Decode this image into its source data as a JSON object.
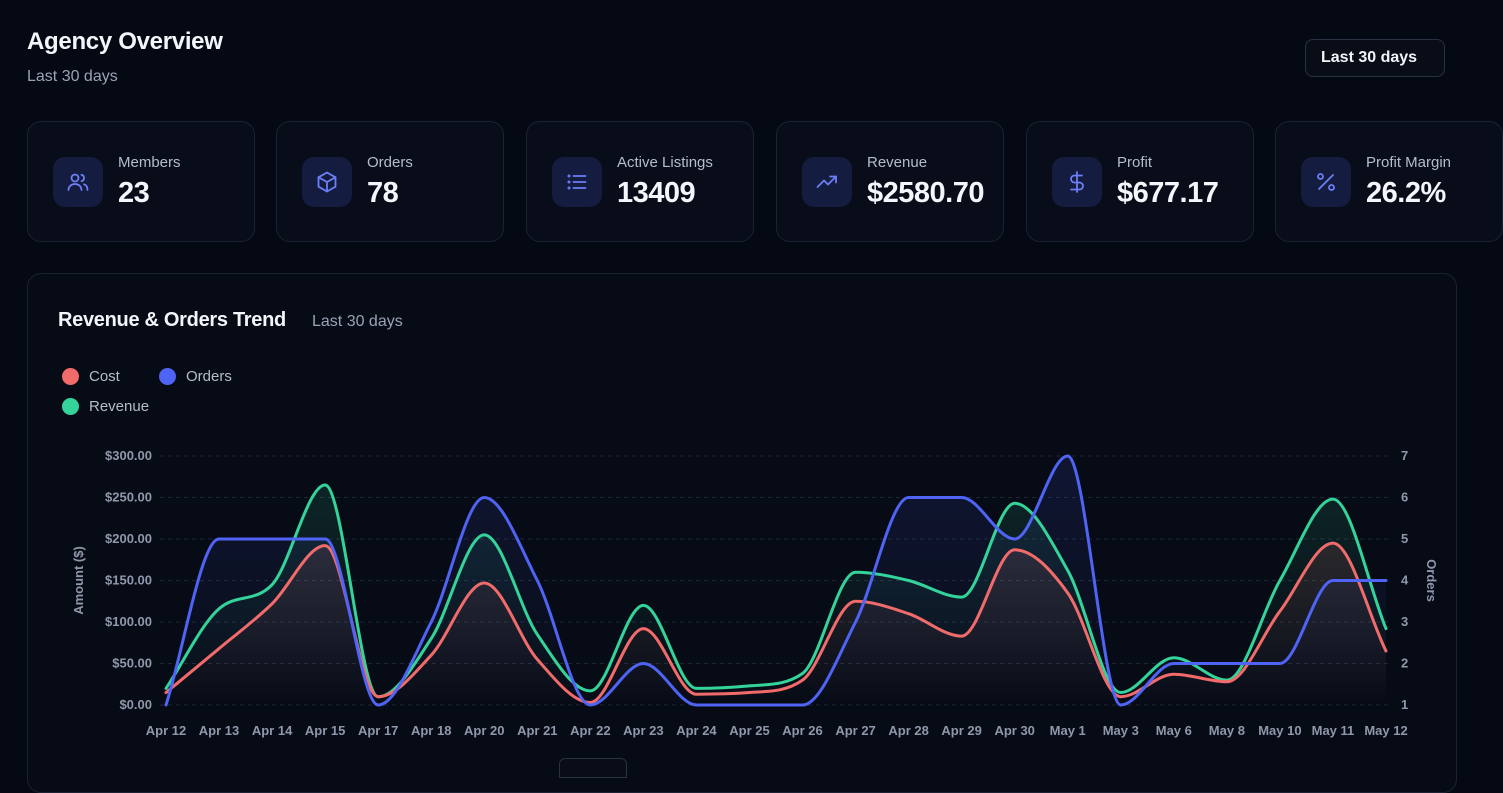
{
  "header": {
    "title": "Agency Overview",
    "subtitle": "Last 30 days",
    "range_label": "Last 30 days"
  },
  "stats": [
    {
      "label": "Members",
      "value": "23",
      "icon": "users-icon"
    },
    {
      "label": "Orders",
      "value": "78",
      "icon": "box-icon"
    },
    {
      "label": "Active Listings",
      "value": "13409",
      "icon": "list-icon"
    },
    {
      "label": "Revenue",
      "value": "$2580.70",
      "icon": "trending-up-icon"
    },
    {
      "label": "Profit",
      "value": "$677.17",
      "icon": "dollar-icon"
    },
    {
      "label": "Profit Margin",
      "value": "26.2%",
      "icon": "percent-icon"
    }
  ],
  "chart_panel": {
    "title": "Revenue & Orders Trend",
    "subtitle": "Last 30 days"
  },
  "colors": {
    "accent": "#4f63f5",
    "icon_bg": "#141c3f",
    "cost": "#f26b6b",
    "orders": "#4f63f5",
    "revenue": "#34d399"
  },
  "chart_data": {
    "type": "line",
    "categories": [
      "Apr 12",
      "Apr 13",
      "Apr 14",
      "Apr 15",
      "Apr 17",
      "Apr 18",
      "Apr 20",
      "Apr 21",
      "Apr 22",
      "Apr 23",
      "Apr 24",
      "Apr 25",
      "Apr 26",
      "Apr 27",
      "Apr 28",
      "Apr 29",
      "Apr 30",
      "May 1",
      "May 3",
      "May 6",
      "May 8",
      "May 10",
      "May 11",
      "May 12"
    ],
    "series": [
      {
        "name": "Cost",
        "axis": "left",
        "color": "#f26b6b",
        "values": [
          15,
          68,
          122,
          192,
          10,
          60,
          147,
          55,
          3,
          92,
          13,
          15,
          30,
          125,
          110,
          83,
          187,
          135,
          10,
          37,
          28,
          113,
          195,
          65
        ]
      },
      {
        "name": "Orders",
        "axis": "right",
        "color": "#4f63f5",
        "values": [
          1,
          5,
          5,
          5,
          1,
          3,
          6,
          4,
          1,
          2,
          1,
          1,
          1,
          3,
          6,
          6,
          5,
          7,
          1,
          2,
          2,
          2,
          4,
          4
        ]
      },
      {
        "name": "Revenue",
        "axis": "left",
        "color": "#34d399",
        "values": [
          20,
          116,
          145,
          265,
          10,
          80,
          205,
          85,
          17,
          120,
          20,
          23,
          38,
          160,
          150,
          130,
          243,
          162,
          15,
          57,
          30,
          150,
          248,
          92
        ]
      }
    ],
    "ylabel": "Amount ($)",
    "y2label": "Orders",
    "ylim": [
      0,
      300
    ],
    "y2lim": [
      1,
      7
    ],
    "yticks": [
      "$0.00",
      "$50.00",
      "$100.00",
      "$150.00",
      "$200.00",
      "$250.00",
      "$300.00"
    ],
    "y2ticks": [
      "1",
      "2",
      "3",
      "4",
      "5",
      "6",
      "7"
    ],
    "grid": true,
    "legend": "top-left"
  }
}
